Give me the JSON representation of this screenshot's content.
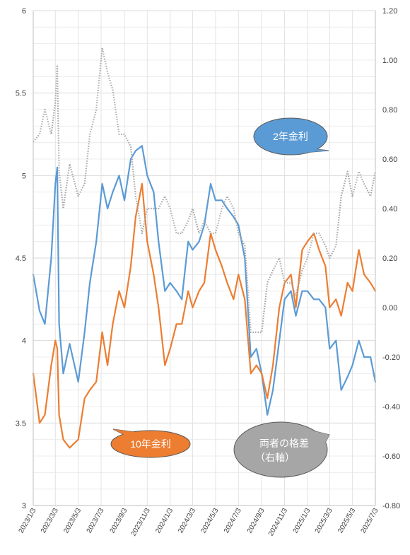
{
  "chart_data": {
    "type": "line",
    "title": "",
    "x_range": [
      "2023/1/3",
      "2025/7/3"
    ],
    "x_tick_labels": [
      "2023/1/3",
      "2023/3/3",
      "2023/5/3",
      "2023/7/3",
      "2023/9/3",
      "2023/11/3",
      "2024/1/3",
      "2024/3/3",
      "2024/5/3",
      "2024/7/3",
      "2024/9/3",
      "2024/11/3",
      "2025/1/3",
      "2025/3/3",
      "2025/5/3",
      "2025/7/3"
    ],
    "y_left": {
      "range": [
        3,
        6
      ],
      "ticks": [
        "3",
        "3.5",
        "4",
        "4.5",
        "5",
        "5.5",
        "6"
      ]
    },
    "y_right": {
      "range": [
        -0.8,
        1.2
      ],
      "ticks": [
        "-0.80",
        "-0.60",
        "-0.40",
        "-0.20",
        "0.00",
        "0.20",
        "0.40",
        "0.60",
        "0.80",
        "1.00",
        "1.20"
      ]
    },
    "grid": true,
    "legend": "callouts",
    "series": [
      {
        "name": "2年金利",
        "axis": "left",
        "color": "#5b9bd5",
        "style": "solid",
        "points": [
          [
            "2023/1/3",
            4.4
          ],
          [
            "2023/1/20",
            4.18
          ],
          [
            "2023/2/3",
            4.1
          ],
          [
            "2023/2/20",
            4.5
          ],
          [
            "2023/3/3",
            4.95
          ],
          [
            "2023/3/8",
            5.05
          ],
          [
            "2023/3/13",
            4.1
          ],
          [
            "2023/3/24",
            3.8
          ],
          [
            "2023/4/10",
            3.98
          ],
          [
            "2023/5/3",
            3.75
          ],
          [
            "2023/5/20",
            4.05
          ],
          [
            "2023/6/3",
            4.35
          ],
          [
            "2023/6/20",
            4.6
          ],
          [
            "2023/7/6",
            4.95
          ],
          [
            "2023/7/20",
            4.8
          ],
          [
            "2023/8/3",
            4.9
          ],
          [
            "2023/8/20",
            5.0
          ],
          [
            "2023/9/3",
            4.85
          ],
          [
            "2023/9/20",
            5.1
          ],
          [
            "2023/10/3",
            5.15
          ],
          [
            "2023/10/20",
            5.18
          ],
          [
            "2023/11/3",
            5.0
          ],
          [
            "2023/11/20",
            4.9
          ],
          [
            "2023/12/3",
            4.6
          ],
          [
            "2023/12/20",
            4.3
          ],
          [
            "2024/1/3",
            4.35
          ],
          [
            "2024/1/20",
            4.3
          ],
          [
            "2024/2/3",
            4.25
          ],
          [
            "2024/2/20",
            4.6
          ],
          [
            "2024/3/3",
            4.55
          ],
          [
            "2024/3/20",
            4.6
          ],
          [
            "2024/4/3",
            4.7
          ],
          [
            "2024/4/20",
            4.95
          ],
          [
            "2024/5/3",
            4.85
          ],
          [
            "2024/5/20",
            4.85
          ],
          [
            "2024/6/3",
            4.8
          ],
          [
            "2024/6/20",
            4.75
          ],
          [
            "2024/7/3",
            4.7
          ],
          [
            "2024/7/20",
            4.5
          ],
          [
            "2024/8/5",
            3.9
          ],
          [
            "2024/8/20",
            3.95
          ],
          [
            "2024/9/3",
            3.8
          ],
          [
            "2024/9/18",
            3.55
          ],
          [
            "2024/10/3",
            3.7
          ],
          [
            "2024/10/20",
            4.0
          ],
          [
            "2024/11/3",
            4.25
          ],
          [
            "2024/11/20",
            4.3
          ],
          [
            "2024/12/3",
            4.15
          ],
          [
            "2024/12/20",
            4.3
          ],
          [
            "2025/1/3",
            4.3
          ],
          [
            "2025/1/20",
            4.25
          ],
          [
            "2025/2/3",
            4.25
          ],
          [
            "2025/2/20",
            4.2
          ],
          [
            "2025/3/3",
            3.95
          ],
          [
            "2025/3/20",
            4.0
          ],
          [
            "2025/4/3",
            3.7
          ],
          [
            "2025/4/20",
            3.78
          ],
          [
            "2025/5/3",
            3.85
          ],
          [
            "2025/5/20",
            4.0
          ],
          [
            "2025/6/3",
            3.9
          ],
          [
            "2025/6/20",
            3.9
          ],
          [
            "2025/7/3",
            3.75
          ]
        ]
      },
      {
        "name": "10年金利",
        "axis": "left",
        "color": "#ed7d31",
        "style": "solid",
        "points": [
          [
            "2023/1/3",
            3.8
          ],
          [
            "2023/1/20",
            3.5
          ],
          [
            "2023/2/3",
            3.55
          ],
          [
            "2023/2/20",
            3.85
          ],
          [
            "2023/3/3",
            4.0
          ],
          [
            "2023/3/8",
            3.95
          ],
          [
            "2023/3/13",
            3.55
          ],
          [
            "2023/3/24",
            3.4
          ],
          [
            "2023/4/10",
            3.35
          ],
          [
            "2023/5/3",
            3.4
          ],
          [
            "2023/5/20",
            3.65
          ],
          [
            "2023/6/3",
            3.7
          ],
          [
            "2023/6/20",
            3.75
          ],
          [
            "2023/7/6",
            4.05
          ],
          [
            "2023/7/20",
            3.85
          ],
          [
            "2023/8/3",
            4.1
          ],
          [
            "2023/8/20",
            4.3
          ],
          [
            "2023/9/3",
            4.2
          ],
          [
            "2023/9/20",
            4.45
          ],
          [
            "2023/10/3",
            4.75
          ],
          [
            "2023/10/20",
            4.95
          ],
          [
            "2023/11/3",
            4.6
          ],
          [
            "2023/11/20",
            4.4
          ],
          [
            "2023/12/3",
            4.2
          ],
          [
            "2023/12/20",
            3.85
          ],
          [
            "2024/1/3",
            3.95
          ],
          [
            "2024/1/20",
            4.1
          ],
          [
            "2024/2/3",
            4.1
          ],
          [
            "2024/2/20",
            4.3
          ],
          [
            "2024/3/3",
            4.2
          ],
          [
            "2024/3/20",
            4.3
          ],
          [
            "2024/4/3",
            4.35
          ],
          [
            "2024/4/20",
            4.65
          ],
          [
            "2024/5/3",
            4.55
          ],
          [
            "2024/5/20",
            4.45
          ],
          [
            "2024/6/3",
            4.35
          ],
          [
            "2024/6/20",
            4.25
          ],
          [
            "2024/7/3",
            4.4
          ],
          [
            "2024/7/20",
            4.25
          ],
          [
            "2024/8/5",
            3.8
          ],
          [
            "2024/8/20",
            3.85
          ],
          [
            "2024/9/3",
            3.8
          ],
          [
            "2024/9/18",
            3.65
          ],
          [
            "2024/10/3",
            3.85
          ],
          [
            "2024/10/20",
            4.2
          ],
          [
            "2024/11/3",
            4.35
          ],
          [
            "2024/11/20",
            4.4
          ],
          [
            "2024/12/3",
            4.2
          ],
          [
            "2024/12/20",
            4.55
          ],
          [
            "2025/1/3",
            4.6
          ],
          [
            "2025/1/20",
            4.65
          ],
          [
            "2025/2/3",
            4.55
          ],
          [
            "2025/2/20",
            4.45
          ],
          [
            "2025/3/3",
            4.2
          ],
          [
            "2025/3/20",
            4.25
          ],
          [
            "2025/4/3",
            4.15
          ],
          [
            "2025/4/20",
            4.35
          ],
          [
            "2025/5/3",
            4.3
          ],
          [
            "2025/5/20",
            4.55
          ],
          [
            "2025/6/3",
            4.4
          ],
          [
            "2025/6/20",
            4.35
          ],
          [
            "2025/7/3",
            4.3
          ]
        ]
      },
      {
        "name": "両者の格差（右軸）",
        "axis": "right",
        "color": "#a6a6a6",
        "style": "dotted",
        "points": [
          [
            "2023/1/3",
            0.67
          ],
          [
            "2023/1/20",
            0.7
          ],
          [
            "2023/2/3",
            0.8
          ],
          [
            "2023/2/20",
            0.7
          ],
          [
            "2023/3/3",
            0.83
          ],
          [
            "2023/3/8",
            0.98
          ],
          [
            "2023/3/13",
            0.55
          ],
          [
            "2023/3/24",
            0.4
          ],
          [
            "2023/4/10",
            0.58
          ],
          [
            "2023/5/3",
            0.45
          ],
          [
            "2023/5/20",
            0.5
          ],
          [
            "2023/6/3",
            0.7
          ],
          [
            "2023/6/20",
            0.8
          ],
          [
            "2023/7/6",
            1.05
          ],
          [
            "2023/7/20",
            0.95
          ],
          [
            "2023/8/3",
            0.88
          ],
          [
            "2023/8/20",
            0.7
          ],
          [
            "2023/9/3",
            0.7
          ],
          [
            "2023/9/20",
            0.65
          ],
          [
            "2023/10/3",
            0.45
          ],
          [
            "2023/10/20",
            0.3
          ],
          [
            "2023/11/3",
            0.4
          ],
          [
            "2023/11/20",
            0.4
          ],
          [
            "2023/12/3",
            0.4
          ],
          [
            "2023/12/20",
            0.45
          ],
          [
            "2024/1/3",
            0.4
          ],
          [
            "2024/1/20",
            0.3
          ],
          [
            "2024/2/3",
            0.3
          ],
          [
            "2024/2/20",
            0.35
          ],
          [
            "2024/3/3",
            0.4
          ],
          [
            "2024/3/20",
            0.3
          ],
          [
            "2024/4/3",
            0.35
          ],
          [
            "2024/4/20",
            0.3
          ],
          [
            "2024/5/3",
            0.3
          ],
          [
            "2024/5/20",
            0.4
          ],
          [
            "2024/6/3",
            0.45
          ],
          [
            "2024/6/20",
            0.4
          ],
          [
            "2024/7/3",
            0.3
          ],
          [
            "2024/7/20",
            0.25
          ],
          [
            "2024/8/5",
            -0.1
          ],
          [
            "2024/8/20",
            -0.1
          ],
          [
            "2024/9/3",
            -0.1
          ],
          [
            "2024/9/18",
            0.1
          ],
          [
            "2024/10/3",
            0.15
          ],
          [
            "2024/10/20",
            0.2
          ],
          [
            "2024/11/3",
            0.1
          ],
          [
            "2024/11/20",
            0.1
          ],
          [
            "2024/12/3",
            0.05
          ],
          [
            "2024/12/20",
            0.15
          ],
          [
            "2025/1/3",
            0.2
          ],
          [
            "2025/1/20",
            0.3
          ],
          [
            "2025/2/3",
            0.3
          ],
          [
            "2025/2/20",
            0.25
          ],
          [
            "2025/3/3",
            0.2
          ],
          [
            "2025/3/20",
            0.25
          ],
          [
            "2025/4/3",
            0.45
          ],
          [
            "2025/4/20",
            0.55
          ],
          [
            "2025/5/3",
            0.45
          ],
          [
            "2025/5/20",
            0.55
          ],
          [
            "2025/6/3",
            0.5
          ],
          [
            "2025/6/20",
            0.45
          ],
          [
            "2025/7/3",
            0.55
          ]
        ]
      }
    ],
    "callouts": [
      {
        "series": 0,
        "text": "2年金利",
        "fill": "#5b9bd5"
      },
      {
        "series": 1,
        "text": "10年金利",
        "fill": "#ed7d31"
      },
      {
        "series": 2,
        "text": "両者の格差",
        "text2": "（右軸）",
        "fill": "#a6a6a6"
      }
    ]
  }
}
